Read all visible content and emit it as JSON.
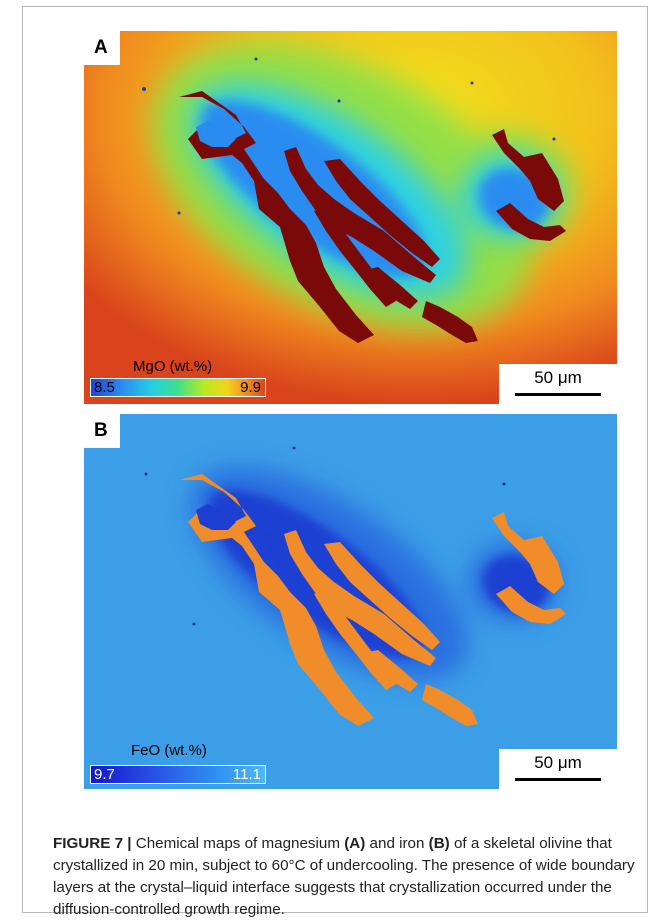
{
  "figure": {
    "panel_a": {
      "letter": "A",
      "colorbar_label": "MgO (wt.%)",
      "colorbar_min": "8.5",
      "colorbar_max": "9.9",
      "scale_label": "50 μm"
    },
    "panel_b": {
      "letter": "B",
      "colorbar_label": "FeO (wt.%)",
      "colorbar_min": "9.7",
      "colorbar_max": "11.1",
      "scale_label": "50 μm"
    },
    "caption": {
      "label": "FIGURE 7 |",
      "text_1": " Chemical maps of magnesium ",
      "ref_a": "(A)",
      "text_2": " and iron ",
      "ref_b": "(B)",
      "text_3": " of a skeletal olivine that crystallized in 20 min, subject to 60°C of undercooling. The presence of wide boundary layers at the crystal–liquid interface suggests that crystallization occurred under the diffusion-controlled growth regime."
    }
  },
  "colors": {
    "mgo_crystal": "#7a0a0a",
    "feo_crystal": "#f08c2a",
    "mgo_melt_center": "#f2d41c",
    "mgo_melt_edge": "#d94a1a",
    "mgo_boundary": "#2a8cf0",
    "feo_melt": "#3a9ee8",
    "feo_boundary": "#1c3fd2"
  }
}
